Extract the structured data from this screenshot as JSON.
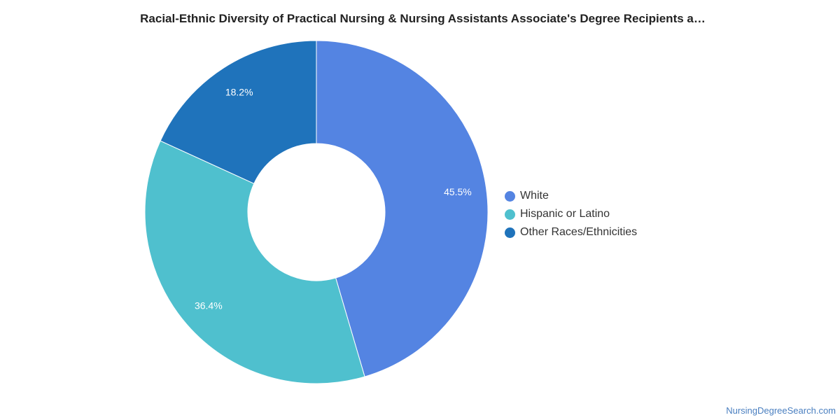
{
  "chart_data": {
    "type": "pie",
    "title": "Racial-Ethnic Diversity of Practical Nursing & Nursing Assistants Associate's Degree Recipients a…",
    "donut": true,
    "slices": [
      {
        "label": "White",
        "value": 45.5,
        "value_label": "45.5%",
        "color": "#5484e2"
      },
      {
        "label": "Hispanic or Latino",
        "value": 36.4,
        "value_label": "36.4%",
        "color": "#4fc0ce"
      },
      {
        "label": "Other Races/Ethnicities",
        "value": 18.2,
        "value_label": "18.2%",
        "color": "#1f73bb"
      }
    ],
    "legend_position": "right"
  },
  "footer": {
    "source": "NursingDegreeSearch.com"
  }
}
